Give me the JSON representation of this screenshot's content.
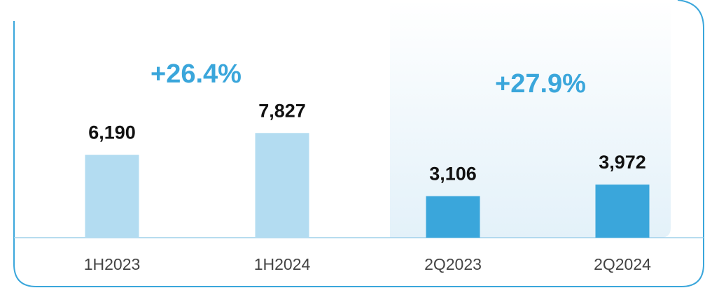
{
  "chart_data": {
    "type": "bar",
    "categories": [
      "1H2023",
      "1H2024",
      "2Q2023",
      "2Q2024"
    ],
    "values": [
      6190,
      7827,
      3106,
      3972
    ],
    "value_labels": [
      "6,190",
      "7,827",
      "3,106",
      "3,972"
    ],
    "colors": [
      "#b3dcf1",
      "#b3dcf1",
      "#3aa6db",
      "#3aa6db"
    ],
    "annotations": [
      "+26.4%",
      "+27.9%"
    ]
  }
}
